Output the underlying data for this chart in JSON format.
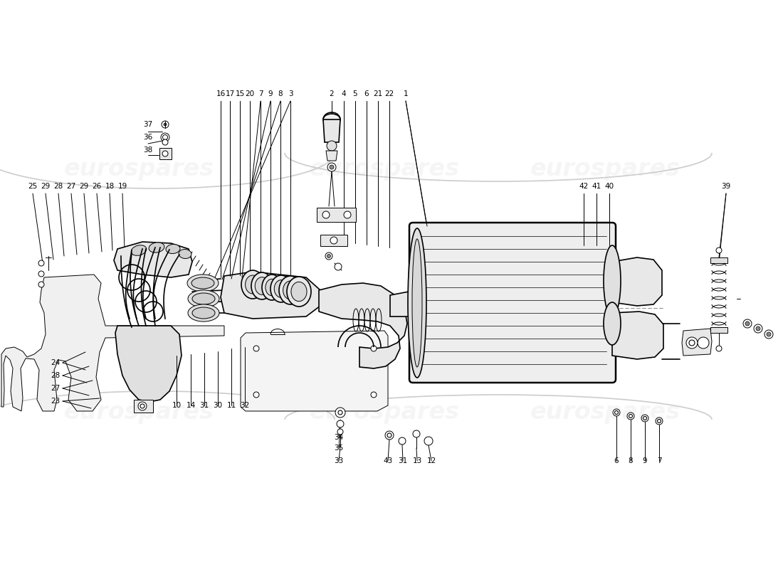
{
  "bg_color": "#ffffff",
  "line_color": "#000000",
  "watermark_color": "#cccccc",
  "watermark_alpha": 0.18,
  "watermark_text": "eurospares",
  "top_labels": [
    [
      "16",
      310,
      132
    ],
    [
      "17",
      323,
      132
    ],
    [
      "15",
      337,
      132
    ],
    [
      "20",
      351,
      132
    ],
    [
      "7",
      366,
      132
    ],
    [
      "9",
      380,
      132
    ],
    [
      "8",
      394,
      132
    ],
    [
      "3",
      408,
      132
    ],
    [
      "2",
      466,
      132
    ],
    [
      "4",
      483,
      132
    ],
    [
      "5",
      499,
      132
    ],
    [
      "6",
      515,
      132
    ],
    [
      "21",
      531,
      132
    ],
    [
      "22",
      547,
      132
    ],
    [
      "1",
      570,
      132
    ]
  ],
  "left_labels": [
    [
      "37",
      208,
      175
    ],
    [
      "36",
      208,
      193
    ],
    [
      "38",
      208,
      211
    ],
    [
      "25",
      46,
      262
    ],
    [
      "29",
      64,
      262
    ],
    [
      "28",
      82,
      262
    ],
    [
      "27",
      100,
      262
    ],
    [
      "29",
      118,
      262
    ],
    [
      "26",
      136,
      262
    ],
    [
      "18",
      154,
      262
    ],
    [
      "19",
      172,
      262
    ]
  ],
  "right_labels": [
    [
      "42",
      820,
      262
    ],
    [
      "41",
      838,
      262
    ],
    [
      "40",
      856,
      262
    ],
    [
      "39",
      1020,
      262
    ]
  ],
  "bottom_left_labels": [
    [
      "24",
      78,
      510
    ],
    [
      "28",
      78,
      528
    ],
    [
      "27",
      78,
      546
    ],
    [
      "23",
      78,
      564
    ]
  ],
  "bottom_mid_labels": [
    [
      "10",
      248,
      570
    ],
    [
      "14",
      268,
      570
    ],
    [
      "31",
      287,
      570
    ],
    [
      "30",
      306,
      570
    ],
    [
      "11",
      325,
      570
    ],
    [
      "32",
      344,
      570
    ]
  ],
  "bottom_labels2": [
    [
      "34",
      476,
      615
    ],
    [
      "35",
      476,
      630
    ],
    [
      "33",
      476,
      648
    ],
    [
      "43",
      545,
      648
    ],
    [
      "31",
      566,
      648
    ],
    [
      "13",
      586,
      648
    ],
    [
      "12",
      606,
      648
    ]
  ],
  "bottom_right_labels": [
    [
      "6",
      866,
      648
    ],
    [
      "8",
      886,
      648
    ],
    [
      "9",
      906,
      648
    ],
    [
      "7",
      926,
      648
    ]
  ]
}
